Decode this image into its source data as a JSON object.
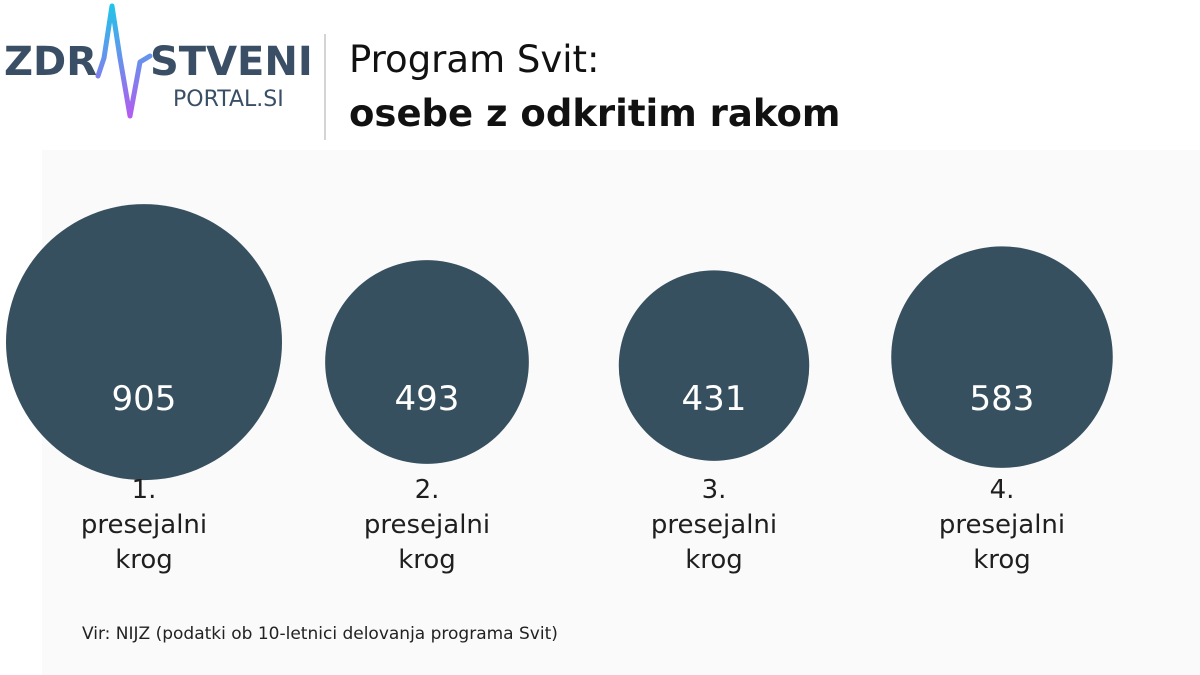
{
  "logo": {
    "left_text": "ZDR",
    "right_text": "STVENI",
    "sub_text": "PORTAL.SI",
    "text_color": "#3a4f66",
    "pulse_color_start": "#22c4e8",
    "pulse_color_end": "#b25cf0"
  },
  "header": {
    "title_line1": "Program Svit:",
    "title_line2": "osebe z odkritim rakom"
  },
  "chart_data": {
    "type": "bubble",
    "categories": [
      "1. presejalni krog",
      "2. presejalni krog",
      "3. presejalni krog",
      "4. presejalni krog"
    ],
    "label_lines": [
      [
        "1.",
        "presejalni",
        "krog"
      ],
      [
        "2.",
        "presejalni",
        "krog"
      ],
      [
        "3.",
        "presejalni",
        "krog"
      ],
      [
        "4.",
        "presejalni",
        "krog"
      ]
    ],
    "values": [
      905,
      493,
      431,
      583
    ],
    "bubble_color": "#37505f",
    "value_label_color": "#ffffff"
  },
  "footer": {
    "source": "Vir: NIJZ (podatki ob 10-letnici delovanja programa Svit)"
  }
}
